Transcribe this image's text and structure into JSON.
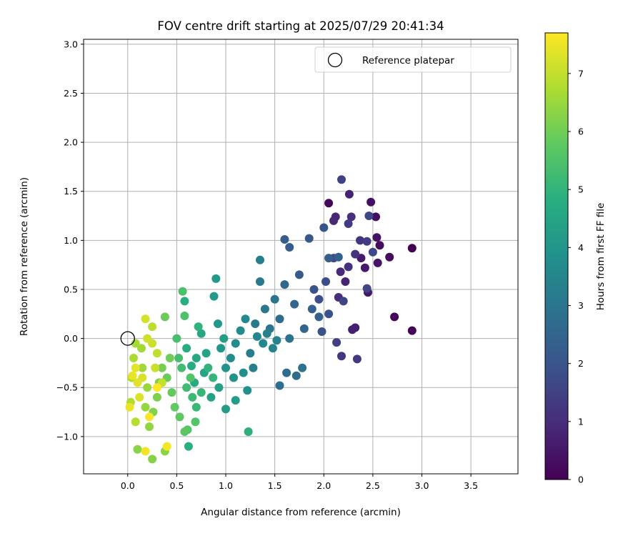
{
  "chart_data": {
    "type": "scatter",
    "title": "FOV centre drift starting at 2025/07/29 20:41:34",
    "xlabel": "Angular distance from reference (arcmin)",
    "ylabel": "Rotation from reference (arcmin)",
    "xlim": [
      -0.45,
      3.98
    ],
    "ylim": [
      -1.38,
      3.05
    ],
    "xticks": [
      0.0,
      0.5,
      1.0,
      1.5,
      2.0,
      2.5,
      3.0,
      3.5
    ],
    "xtick_labels": [
      "0.0",
      "0.5",
      "1.0",
      "1.5",
      "2.0",
      "2.5",
      "3.0",
      "3.5"
    ],
    "yticks": [
      -1.0,
      -0.5,
      0.0,
      0.5,
      1.0,
      1.5,
      2.0,
      2.5,
      3.0
    ],
    "ytick_labels": [
      "−1.0",
      "−0.5",
      "0.0",
      "0.5",
      "1.0",
      "1.5",
      "2.0",
      "2.5",
      "3.0"
    ],
    "grid": true,
    "legend": {
      "position": "top-right",
      "entries": [
        "Reference platepar"
      ]
    },
    "reference_point": {
      "x": 0.0,
      "y": 0.0
    },
    "colorbar": {
      "label": "Hours from first FF file",
      "range": [
        0,
        7.7
      ],
      "ticks": [
        0,
        1,
        2,
        3,
        4,
        5,
        6,
        7
      ],
      "colormap": "viridis"
    },
    "columns": [
      "x",
      "y",
      "hours"
    ],
    "points": [
      [
        2.9,
        0.92,
        0.0
      ],
      [
        2.9,
        0.08,
        0.05
      ],
      [
        2.72,
        0.22,
        0.1
      ],
      [
        2.05,
        1.38,
        0.15
      ],
      [
        2.67,
        0.83,
        0.2
      ],
      [
        2.57,
        0.95,
        0.25
      ],
      [
        2.53,
        1.24,
        0.3
      ],
      [
        2.48,
        1.39,
        0.35
      ],
      [
        2.54,
        1.03,
        0.4
      ],
      [
        2.55,
        0.77,
        0.45
      ],
      [
        2.45,
        0.47,
        0.5
      ],
      [
        2.42,
        0.72,
        0.55
      ],
      [
        2.38,
        0.82,
        0.6
      ],
      [
        2.32,
        0.11,
        0.65
      ],
      [
        2.29,
        0.09,
        0.7
      ],
      [
        2.26,
        1.47,
        0.75
      ],
      [
        2.22,
        0.58,
        0.8
      ],
      [
        2.12,
        1.24,
        0.85
      ],
      [
        2.1,
        1.2,
        0.9
      ],
      [
        2.17,
        0.68,
        0.95
      ],
      [
        2.15,
        0.42,
        1.0
      ],
      [
        2.28,
        1.24,
        1.05
      ],
      [
        2.25,
        0.73,
        1.1
      ],
      [
        2.32,
        0.86,
        1.15
      ],
      [
        2.37,
        1.0,
        1.2
      ],
      [
        2.18,
        -0.18,
        1.25
      ],
      [
        2.34,
        -0.21,
        1.3
      ],
      [
        2.25,
        1.17,
        1.35
      ],
      [
        2.44,
        0.99,
        1.4
      ],
      [
        2.13,
        -0.04,
        1.45
      ],
      [
        2.18,
        1.62,
        1.5
      ],
      [
        2.2,
        0.38,
        1.55
      ],
      [
        2.44,
        0.51,
        1.6
      ],
      [
        2.46,
        1.25,
        1.65
      ],
      [
        2.5,
        0.88,
        1.7
      ],
      [
        2.1,
        0.82,
        1.75
      ],
      [
        2.02,
        0.58,
        1.8
      ],
      [
        1.95,
        0.4,
        1.85
      ],
      [
        2.05,
        0.25,
        1.9
      ],
      [
        1.98,
        0.07,
        1.95
      ],
      [
        1.9,
        0.5,
        2.0
      ],
      [
        2.0,
        1.13,
        2.05
      ],
      [
        1.85,
        1.02,
        2.1
      ],
      [
        1.75,
        0.65,
        2.15
      ],
      [
        1.65,
        0.93,
        2.2
      ],
      [
        1.6,
        1.01,
        2.25
      ],
      [
        2.05,
        0.82,
        2.3
      ],
      [
        2.15,
        0.83,
        2.35
      ],
      [
        1.95,
        0.22,
        2.4
      ],
      [
        1.88,
        0.3,
        2.45
      ],
      [
        1.8,
        0.1,
        2.5
      ],
      [
        1.7,
        0.35,
        2.55
      ],
      [
        1.6,
        0.55,
        2.6
      ],
      [
        1.55,
        0.2,
        2.65
      ],
      [
        1.72,
        -0.38,
        2.7
      ],
      [
        1.62,
        -0.35,
        2.75
      ],
      [
        1.55,
        -0.48,
        2.8
      ],
      [
        1.78,
        -0.3,
        2.85
      ],
      [
        1.65,
        0.0,
        2.9
      ],
      [
        1.5,
        0.4,
        2.95
      ],
      [
        1.45,
        0.1,
        3.0
      ],
      [
        1.4,
        0.3,
        3.05
      ],
      [
        1.35,
        0.58,
        3.1
      ],
      [
        1.3,
        0.15,
        3.15
      ],
      [
        1.25,
        -0.15,
        3.2
      ],
      [
        1.28,
        -0.3,
        3.25
      ],
      [
        1.35,
        0.8,
        3.3
      ],
      [
        1.42,
        0.05,
        3.35
      ],
      [
        1.52,
        -0.02,
        3.4
      ],
      [
        1.48,
        -0.1,
        3.45
      ],
      [
        1.38,
        -0.05,
        3.5
      ],
      [
        1.32,
        0.02,
        3.55
      ],
      [
        1.2,
        0.2,
        3.6
      ],
      [
        1.15,
        0.08,
        3.65
      ],
      [
        1.1,
        -0.05,
        3.7
      ],
      [
        1.05,
        -0.2,
        3.75
      ],
      [
        1.18,
        -0.35,
        3.8
      ],
      [
        1.22,
        -0.53,
        3.85
      ],
      [
        1.08,
        -0.4,
        3.9
      ],
      [
        1.0,
        -0.3,
        3.95
      ],
      [
        0.95,
        -0.1,
        4.0
      ],
      [
        0.92,
        0.15,
        4.05
      ],
      [
        0.88,
        0.43,
        4.1
      ],
      [
        0.9,
        0.61,
        4.15
      ],
      [
        1.0,
        -0.72,
        4.2
      ],
      [
        1.1,
        -0.63,
        4.25
      ],
      [
        0.98,
        0.0,
        4.3
      ],
      [
        0.93,
        -0.5,
        4.35
      ],
      [
        0.85,
        -0.6,
        4.4
      ],
      [
        0.8,
        -0.15,
        4.45
      ],
      [
        0.78,
        -0.35,
        4.5
      ],
      [
        0.75,
        0.05,
        4.55
      ],
      [
        0.7,
        -0.2,
        4.6
      ],
      [
        0.68,
        -0.45,
        4.65
      ],
      [
        0.65,
        -0.28,
        4.7
      ],
      [
        0.6,
        -0.1,
        4.75
      ],
      [
        0.58,
        0.38,
        4.8
      ],
      [
        0.62,
        -1.1,
        4.85
      ],
      [
        1.23,
        -0.95,
        4.9
      ],
      [
        0.72,
        0.12,
        4.95
      ],
      [
        0.82,
        -0.3,
        5.0
      ],
      [
        0.87,
        -0.4,
        5.05
      ],
      [
        0.75,
        -0.55,
        5.1
      ],
      [
        0.7,
        -0.7,
        5.15
      ],
      [
        0.66,
        -0.6,
        5.2
      ],
      [
        0.6,
        -0.5,
        5.25
      ],
      [
        0.55,
        -0.3,
        5.3
      ],
      [
        0.52,
        -0.2,
        5.35
      ],
      [
        0.5,
        0.0,
        5.4
      ],
      [
        0.56,
        0.48,
        5.45
      ],
      [
        0.58,
        0.23,
        5.5
      ],
      [
        0.64,
        -0.4,
        5.55
      ],
      [
        0.69,
        -0.85,
        5.6
      ],
      [
        0.61,
        -0.93,
        5.65
      ],
      [
        0.58,
        -0.95,
        5.7
      ],
      [
        0.53,
        -0.8,
        5.75
      ],
      [
        0.48,
        -0.7,
        5.8
      ],
      [
        0.45,
        -0.55,
        5.85
      ],
      [
        0.4,
        -0.4,
        5.9
      ],
      [
        0.38,
        0.22,
        5.95
      ],
      [
        0.43,
        -0.2,
        6.0
      ],
      [
        0.35,
        -0.3,
        6.05
      ],
      [
        0.32,
        -0.45,
        6.1
      ],
      [
        0.3,
        -0.6,
        6.15
      ],
      [
        0.26,
        -0.75,
        6.2
      ],
      [
        0.25,
        -1.23,
        6.25
      ],
      [
        0.1,
        -1.13,
        6.3
      ],
      [
        0.38,
        -1.15,
        6.35
      ],
      [
        0.22,
        -0.9,
        6.4
      ],
      [
        0.18,
        -0.7,
        6.45
      ],
      [
        0.2,
        -0.5,
        6.5
      ],
      [
        0.15,
        -0.3,
        6.55
      ],
      [
        0.14,
        -0.1,
        6.6
      ],
      [
        0.08,
        -0.05,
        6.65
      ],
      [
        0.06,
        -0.2,
        6.7
      ],
      [
        0.04,
        -0.4,
        6.75
      ],
      [
        0.03,
        -0.65,
        6.8
      ],
      [
        0.08,
        -0.85,
        6.85
      ],
      [
        0.25,
        0.12,
        6.9
      ],
      [
        0.3,
        -0.15,
        6.95
      ],
      [
        0.35,
        -0.45,
        7.0
      ],
      [
        0.28,
        -0.3,
        7.05
      ],
      [
        0.25,
        -0.05,
        7.1
      ],
      [
        0.2,
        0.0,
        7.15
      ],
      [
        0.18,
        0.2,
        7.2
      ],
      [
        0.15,
        -0.4,
        7.25
      ],
      [
        0.12,
        -0.6,
        7.3
      ],
      [
        0.1,
        -0.45,
        7.35
      ],
      [
        0.08,
        -0.3,
        7.4
      ],
      [
        0.05,
        -0.38,
        7.45
      ],
      [
        0.02,
        -0.7,
        7.5
      ],
      [
        0.18,
        -1.15,
        7.55
      ],
      [
        0.4,
        -1.1,
        7.6
      ],
      [
        0.22,
        -0.8,
        7.65
      ],
      [
        0.3,
        -0.5,
        7.7
      ]
    ]
  }
}
